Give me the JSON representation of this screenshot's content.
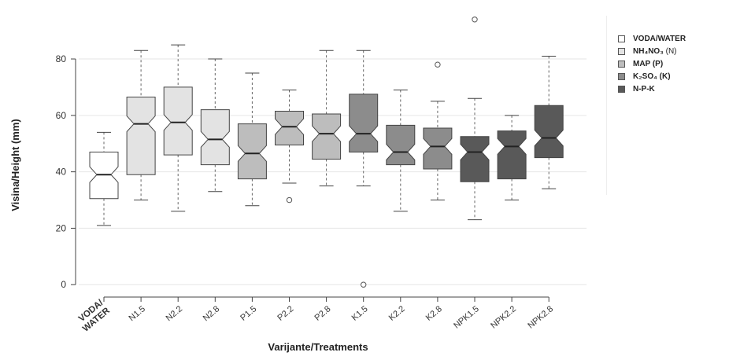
{
  "chart_data": {
    "type": "boxplot",
    "xlabel": "Varijante/Treatments",
    "ylabel": "Visina/Height (mm)",
    "ylim": [
      -3,
      97
    ],
    "yticks": [
      0,
      20,
      40,
      60,
      80
    ],
    "categories": [
      "VODA/ WATER",
      "N1.5",
      "N2.2",
      "N2.8",
      "P1.5",
      "P2.2",
      "P2.8",
      "K1.5",
      "K2.2",
      "K2.8",
      "NPK1.5",
      "NPK2.2",
      "NPK2.8"
    ],
    "groups": [
      "water",
      "N",
      "N",
      "N",
      "P",
      "P",
      "P",
      "K",
      "K",
      "K",
      "NPK",
      "NPK",
      "NPK"
    ],
    "boxes": [
      {
        "min": 21,
        "q1": 30.5,
        "median": 39,
        "q3": 47,
        "max": 54,
        "outliers": []
      },
      {
        "min": 30,
        "q1": 39,
        "median": 57,
        "q3": 66.5,
        "max": 83,
        "outliers": []
      },
      {
        "min": 26,
        "q1": 46,
        "median": 57.5,
        "q3": 70,
        "max": 85,
        "outliers": []
      },
      {
        "min": 33,
        "q1": 42.5,
        "median": 51.5,
        "q3": 62,
        "max": 80,
        "outliers": []
      },
      {
        "min": 28,
        "q1": 37.5,
        "median": 46.5,
        "q3": 57,
        "max": 75,
        "outliers": []
      },
      {
        "min": 36,
        "q1": 49.5,
        "median": 56,
        "q3": 61.5,
        "max": 69,
        "outliers": [
          30
        ]
      },
      {
        "min": 35,
        "q1": 44.5,
        "median": 53.5,
        "q3": 60.5,
        "max": 83,
        "outliers": []
      },
      {
        "min": 35,
        "q1": 47,
        "median": 53.5,
        "q3": 67.5,
        "max": 83,
        "outliers": [
          0
        ]
      },
      {
        "min": 26,
        "q1": 42.5,
        "median": 47,
        "q3": 56.5,
        "max": 69,
        "outliers": []
      },
      {
        "min": 30,
        "q1": 41,
        "median": 49,
        "q3": 55.5,
        "max": 65,
        "outliers": [
          78
        ]
      },
      {
        "min": 23,
        "q1": 36.5,
        "median": 47,
        "q3": 52.5,
        "max": 66,
        "outliers": [
          94
        ]
      },
      {
        "min": 30,
        "q1": 37.5,
        "median": 49,
        "q3": 54.5,
        "max": 60,
        "outliers": []
      },
      {
        "min": 34,
        "q1": 45,
        "median": 52,
        "q3": 63.5,
        "max": 81,
        "outliers": []
      }
    ],
    "legend": [
      {
        "key": "water",
        "label": "VODA/WATER",
        "suffix": "",
        "color": "#ffffff"
      },
      {
        "key": "N",
        "label": "NH₄NO₃",
        "suffix": " (N)",
        "color": "#e3e3e3"
      },
      {
        "key": "P",
        "label": "MAP (P)",
        "suffix": "",
        "color": "#bdbdbd"
      },
      {
        "key": "K",
        "label": "K₂SO₄ (K)",
        "suffix": "",
        "color": "#8c8c8c"
      },
      {
        "key": "NPK",
        "label": "N-P-K",
        "suffix": "",
        "color": "#595959"
      }
    ],
    "legend_position": "top-right"
  }
}
